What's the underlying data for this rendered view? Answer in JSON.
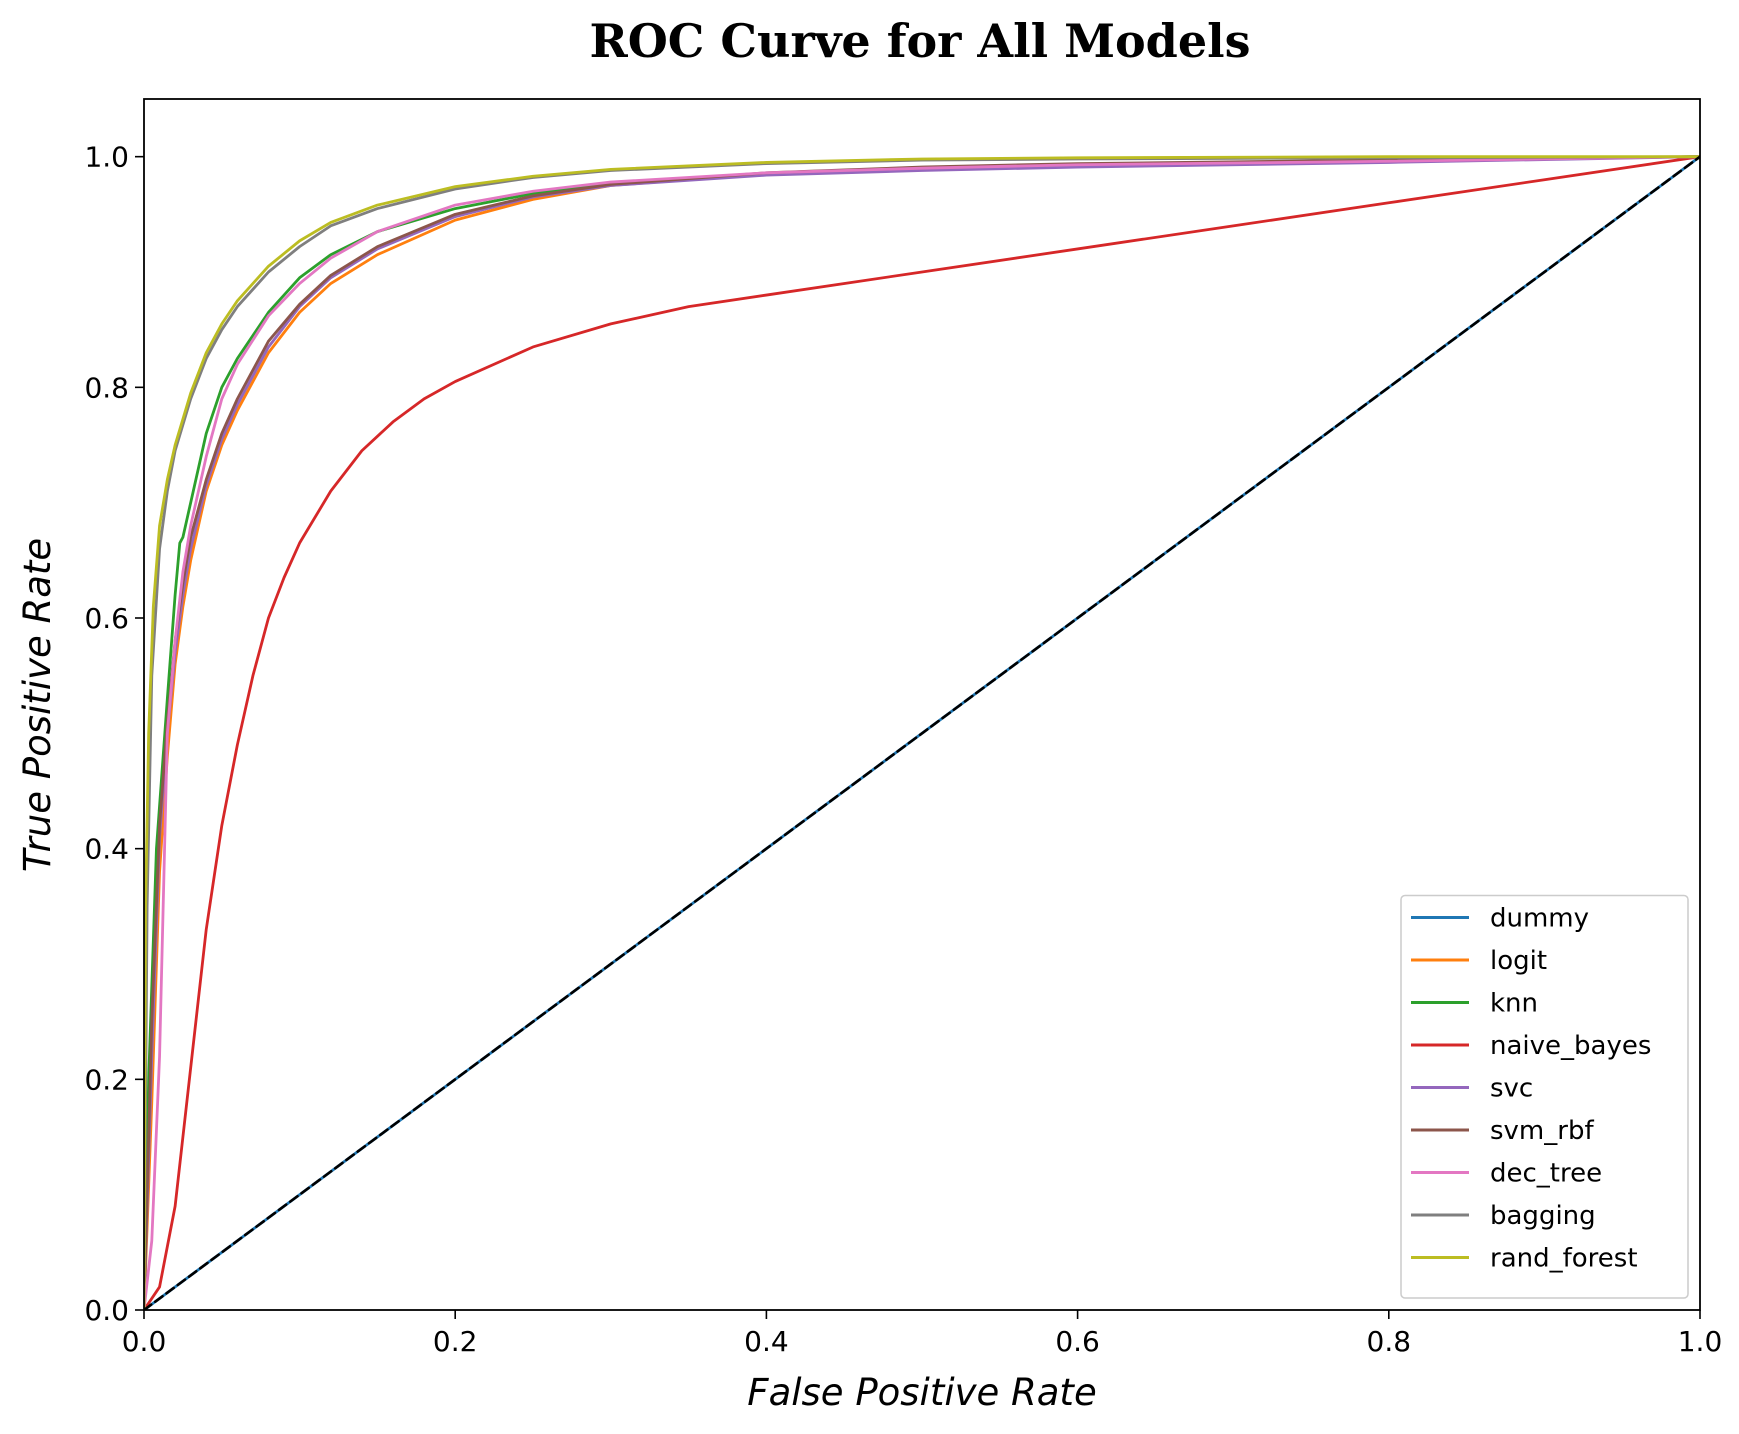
{
  "chart_data": {
    "type": "line",
    "title": "ROC Curve for All Models",
    "xlabel": "False Positive Rate",
    "ylabel": "True Positive Rate",
    "xlim": [
      0.0,
      1.0
    ],
    "ylim": [
      0.0,
      1.05
    ],
    "x_ticks": [
      "0.0",
      "0.2",
      "0.4",
      "0.6",
      "0.8",
      "1.0"
    ],
    "y_ticks": [
      "0.0",
      "0.2",
      "0.4",
      "0.6",
      "0.8",
      "1.0"
    ],
    "grid": false,
    "legend_position": "bottom-right",
    "series": [
      {
        "name": "dummy",
        "color": "#1f77b4",
        "x": [
          0.0,
          1.0
        ],
        "y": [
          0.0,
          1.0
        ]
      },
      {
        "name": "logit",
        "color": "#ff7f0e",
        "x": [
          0.0,
          0.005,
          0.01,
          0.015,
          0.02,
          0.025,
          0.03,
          0.04,
          0.05,
          0.06,
          0.08,
          0.1,
          0.12,
          0.15,
          0.2,
          0.25,
          0.3,
          0.4,
          0.5,
          0.6,
          0.8,
          1.0
        ],
        "y": [
          0.0,
          0.18,
          0.38,
          0.48,
          0.56,
          0.61,
          0.65,
          0.71,
          0.75,
          0.78,
          0.83,
          0.865,
          0.89,
          0.915,
          0.945,
          0.963,
          0.975,
          0.985,
          0.99,
          0.993,
          0.997,
          1.0
        ]
      },
      {
        "name": "knn",
        "color": "#2ca02c",
        "x": [
          0.0,
          0.003,
          0.008,
          0.015,
          0.02,
          0.023,
          0.025,
          0.03,
          0.04,
          0.05,
          0.06,
          0.08,
          0.1,
          0.12,
          0.15,
          0.2,
          0.25,
          0.3,
          0.4,
          0.5,
          0.6,
          0.8,
          1.0
        ],
        "y": [
          0.0,
          0.2,
          0.4,
          0.53,
          0.62,
          0.665,
          0.67,
          0.7,
          0.76,
          0.8,
          0.825,
          0.865,
          0.895,
          0.915,
          0.935,
          0.955,
          0.968,
          0.976,
          0.985,
          0.99,
          0.993,
          0.997,
          1.0
        ]
      },
      {
        "name": "naive_bayes",
        "color": "#d62728",
        "x": [
          0.0,
          0.01,
          0.02,
          0.03,
          0.04,
          0.05,
          0.06,
          0.07,
          0.08,
          0.09,
          0.1,
          0.12,
          0.14,
          0.16,
          0.18,
          0.2,
          0.25,
          0.3,
          0.35,
          0.4,
          0.5,
          0.6,
          0.7,
          0.8,
          0.9,
          1.0
        ],
        "y": [
          0.0,
          0.02,
          0.09,
          0.21,
          0.33,
          0.42,
          0.49,
          0.55,
          0.6,
          0.635,
          0.665,
          0.71,
          0.745,
          0.77,
          0.79,
          0.805,
          0.835,
          0.855,
          0.87,
          0.88,
          0.9,
          0.92,
          0.94,
          0.96,
          0.98,
          1.0
        ]
      },
      {
        "name": "svc",
        "color": "#9467bd",
        "x": [
          0.0,
          0.005,
          0.01,
          0.015,
          0.02,
          0.025,
          0.03,
          0.04,
          0.05,
          0.06,
          0.08,
          0.1,
          0.12,
          0.15,
          0.2,
          0.25,
          0.3,
          0.4,
          0.5,
          0.6,
          0.8,
          1.0
        ],
        "y": [
          0.0,
          0.22,
          0.41,
          0.5,
          0.57,
          0.62,
          0.66,
          0.715,
          0.755,
          0.785,
          0.835,
          0.87,
          0.895,
          0.92,
          0.948,
          0.965,
          0.975,
          0.984,
          0.988,
          0.991,
          0.995,
          1.0
        ]
      },
      {
        "name": "svm_rbf",
        "color": "#8c564b",
        "x": [
          0.0,
          0.005,
          0.01,
          0.015,
          0.02,
          0.025,
          0.03,
          0.04,
          0.05,
          0.06,
          0.08,
          0.1,
          0.12,
          0.15,
          0.2,
          0.25,
          0.3,
          0.4,
          0.5,
          0.6,
          0.8,
          1.0
        ],
        "y": [
          0.0,
          0.25,
          0.42,
          0.51,
          0.58,
          0.63,
          0.67,
          0.72,
          0.76,
          0.79,
          0.84,
          0.872,
          0.897,
          0.922,
          0.95,
          0.966,
          0.976,
          0.986,
          0.991,
          0.994,
          0.997,
          1.0
        ]
      },
      {
        "name": "dec_tree",
        "color": "#e377c2",
        "x": [
          0.0,
          0.005,
          0.01,
          0.015,
          0.02,
          0.025,
          0.03,
          0.04,
          0.05,
          0.06,
          0.08,
          0.1,
          0.12,
          0.15,
          0.2,
          0.25,
          0.3,
          0.4,
          0.5,
          0.6,
          0.8,
          1.0
        ],
        "y": [
          0.0,
          0.06,
          0.22,
          0.5,
          0.58,
          0.64,
          0.68,
          0.74,
          0.79,
          0.82,
          0.862,
          0.89,
          0.912,
          0.935,
          0.958,
          0.97,
          0.978,
          0.986,
          0.99,
          0.993,
          0.996,
          1.0
        ]
      },
      {
        "name": "bagging",
        "color": "#7f7f7f",
        "x": [
          0.0,
          0.002,
          0.005,
          0.01,
          0.015,
          0.02,
          0.03,
          0.04,
          0.05,
          0.06,
          0.08,
          0.1,
          0.12,
          0.15,
          0.2,
          0.25,
          0.3,
          0.4,
          0.5,
          0.6,
          0.8,
          1.0
        ],
        "y": [
          0.0,
          0.35,
          0.55,
          0.66,
          0.71,
          0.745,
          0.79,
          0.825,
          0.85,
          0.87,
          0.9,
          0.922,
          0.94,
          0.955,
          0.972,
          0.982,
          0.988,
          0.994,
          0.997,
          0.998,
          0.999,
          1.0
        ]
      },
      {
        "name": "rand_forest",
        "color": "#bcbd22",
        "x": [
          0.0,
          0.001,
          0.003,
          0.006,
          0.01,
          0.015,
          0.02,
          0.03,
          0.04,
          0.05,
          0.06,
          0.08,
          0.1,
          0.12,
          0.15,
          0.2,
          0.25,
          0.3,
          0.4,
          0.5,
          0.6,
          0.8,
          1.0
        ],
        "y": [
          0.0,
          0.35,
          0.5,
          0.61,
          0.68,
          0.72,
          0.75,
          0.795,
          0.83,
          0.855,
          0.875,
          0.905,
          0.927,
          0.943,
          0.958,
          0.974,
          0.983,
          0.989,
          0.995,
          0.998,
          0.999,
          1.0,
          1.0
        ]
      },
      {
        "name": "",
        "color": "#000000",
        "dashed": true,
        "in_legend": false,
        "x": [
          0.0,
          1.0
        ],
        "y": [
          0.0,
          1.0
        ]
      }
    ]
  }
}
